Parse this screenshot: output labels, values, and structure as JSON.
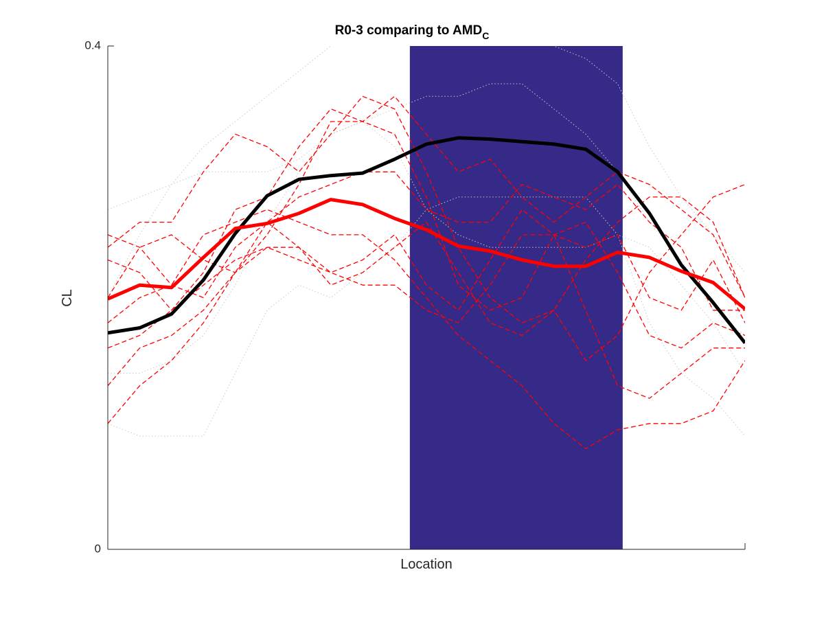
{
  "chart_data": {
    "type": "line",
    "title": "R0-3 comparing to AMD",
    "title_subscript": "C",
    "xlabel": "Location",
    "ylabel": "CL",
    "xlim": [
      0,
      1
    ],
    "xticks": [],
    "ylim": [
      0,
      0.4
    ],
    "yticks": [
      0,
      0.4
    ],
    "grid": false,
    "highlight": {
      "xrange": [
        0.474,
        0.808
      ],
      "color": "#352a87"
    },
    "x": [
      0,
      0.05,
      0.1,
      0.15,
      0.2,
      0.25,
      0.3,
      0.35,
      0.4,
      0.45,
      0.5,
      0.55,
      0.6,
      0.65,
      0.7,
      0.75,
      0.8,
      0.85,
      0.9,
      0.95,
      1
    ],
    "series": [
      {
        "color": "#c8c8c8",
        "style": "dotted",
        "width": 1,
        "values": [
          0.2,
          0.25,
          0.29,
          0.32,
          0.34,
          0.36,
          0.38,
          0.4,
          0.41,
          0.4,
          0.41,
          0.42,
          0.42,
          0.41,
          0.4,
          0.39,
          0.37,
          0.32,
          0.28,
          0.25,
          0.22
        ]
      },
      {
        "color": "#c8c8c8",
        "style": "dotted",
        "width": 1,
        "values": [
          0.14,
          0.14,
          0.15,
          0.17,
          0.21,
          0.26,
          0.3,
          0.33,
          0.34,
          0.35,
          0.36,
          0.36,
          0.37,
          0.37,
          0.35,
          0.33,
          0.3,
          0.26,
          0.23,
          0.19,
          0.17
        ]
      },
      {
        "color": "#c8c8c8",
        "style": "dotted",
        "width": 1,
        "values": [
          0.1,
          0.09,
          0.09,
          0.09,
          0.14,
          0.19,
          0.21,
          0.2,
          0.22,
          0.24,
          0.27,
          0.28,
          0.28,
          0.28,
          0.28,
          0.28,
          0.25,
          0.18,
          0.14,
          0.12,
          0.09
        ]
      },
      {
        "color": "#c8c8c8",
        "style": "dotted",
        "width": 1,
        "values": [
          0.27,
          0.28,
          0.29,
          0.3,
          0.3,
          0.3,
          0.31,
          0.33,
          0.34,
          0.32,
          0.27,
          0.25,
          0.24,
          0.24,
          0.24,
          0.24,
          0.25,
          0.24,
          0.21,
          0.18,
          0.14
        ]
      },
      {
        "color": "#ff0000",
        "style": "dashed",
        "width": 1.3,
        "values": [
          0.24,
          0.26,
          0.26,
          0.3,
          0.33,
          0.32,
          0.3,
          0.33,
          0.36,
          0.35,
          0.3,
          0.24,
          0.2,
          0.18,
          0.19,
          0.15,
          0.17,
          0.22,
          0.25,
          0.28,
          0.29
        ]
      },
      {
        "color": "#ff0000",
        "style": "dashed",
        "width": 1.3,
        "values": [
          0.18,
          0.2,
          0.21,
          0.25,
          0.26,
          0.27,
          0.26,
          0.25,
          0.25,
          0.23,
          0.2,
          0.17,
          0.15,
          0.13,
          0.1,
          0.08,
          0.095,
          0.1,
          0.1,
          0.11,
          0.15
        ]
      },
      {
        "color": "#ff0000",
        "style": "dashed",
        "width": 1.3,
        "values": [
          0.1,
          0.13,
          0.15,
          0.18,
          0.22,
          0.25,
          0.29,
          0.34,
          0.34,
          0.36,
          0.33,
          0.3,
          0.31,
          0.28,
          0.26,
          0.28,
          0.3,
          0.29,
          0.27,
          0.25,
          0.2
        ]
      },
      {
        "color": "#ff0000",
        "style": "dashed",
        "width": 1.3,
        "values": [
          0.2,
          0.24,
          0.25,
          0.23,
          0.22,
          0.24,
          0.23,
          0.22,
          0.23,
          0.25,
          0.21,
          0.19,
          0.23,
          0.27,
          0.25,
          0.26,
          0.22,
          0.17,
          0.16,
          0.18,
          0.17
        ]
      },
      {
        "color": "#ff0000",
        "style": "dashed",
        "width": 1.3,
        "values": [
          0.23,
          0.22,
          0.19,
          0.22,
          0.27,
          0.28,
          0.32,
          0.35,
          0.34,
          0.33,
          0.28,
          0.21,
          0.19,
          0.2,
          0.25,
          0.19,
          0.13,
          0.12,
          0.14,
          0.16,
          0.16
        ]
      },
      {
        "color": "#ff0000",
        "style": "dashed",
        "width": 1.3,
        "values": [
          0.16,
          0.17,
          0.19,
          0.21,
          0.23,
          0.24,
          0.24,
          0.22,
          0.21,
          0.21,
          0.19,
          0.18,
          0.21,
          0.25,
          0.25,
          0.24,
          0.25,
          0.2,
          0.19,
          0.23,
          0.18
        ]
      },
      {
        "color": "#ff0000",
        "style": "dashed",
        "width": 1.3,
        "values": [
          0.25,
          0.24,
          0.21,
          0.2,
          0.24,
          0.26,
          0.24,
          0.21,
          0.22,
          0.24,
          0.26,
          0.22,
          0.18,
          0.17,
          0.19,
          0.23,
          0.26,
          0.28,
          0.28,
          0.26,
          0.2
        ]
      },
      {
        "color": "#ff0000",
        "style": "dashed",
        "width": 1.3,
        "values": [
          0.13,
          0.16,
          0.17,
          0.19,
          0.22,
          0.26,
          0.28,
          0.29,
          0.3,
          0.3,
          0.27,
          0.26,
          0.26,
          0.29,
          0.28,
          0.27,
          0.29,
          0.26,
          0.24,
          0.19,
          0.19
        ]
      },
      {
        "color": "#000000",
        "style": "solid",
        "width": 5,
        "values": [
          0.172,
          0.176,
          0.187,
          0.214,
          0.251,
          0.281,
          0.294,
          0.297,
          0.299,
          0.31,
          0.322,
          0.327,
          0.326,
          0.324,
          0.322,
          0.318,
          0.3,
          0.267,
          0.226,
          0.196,
          0.164
        ]
      },
      {
        "color": "#ff0000",
        "style": "solid",
        "width": 5,
        "values": [
          0.199,
          0.21,
          0.208,
          0.232,
          0.255,
          0.259,
          0.267,
          0.278,
          0.274,
          0.263,
          0.254,
          0.241,
          0.237,
          0.23,
          0.225,
          0.225,
          0.236,
          0.232,
          0.221,
          0.212,
          0.191
        ]
      }
    ]
  }
}
